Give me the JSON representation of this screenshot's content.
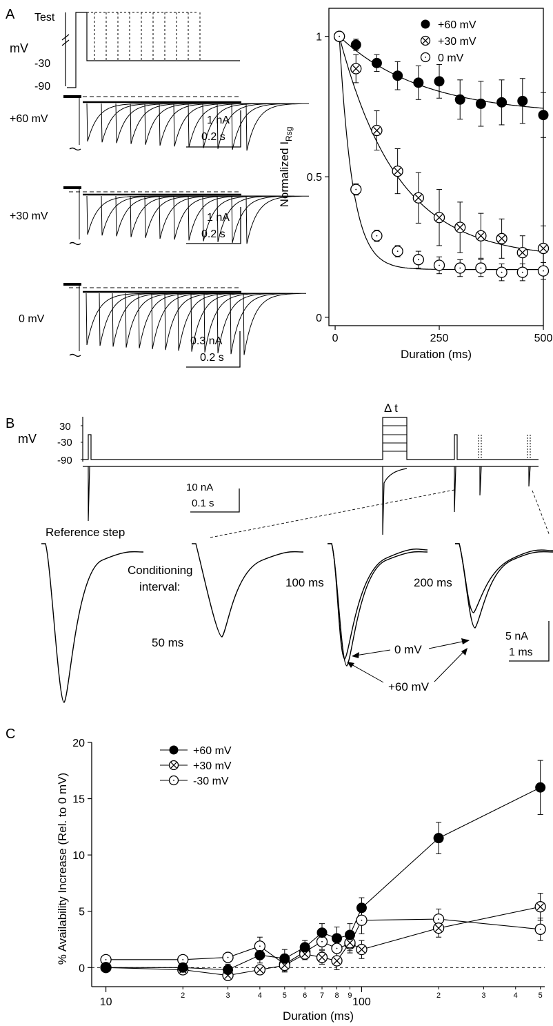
{
  "panels": {
    "A": {
      "label": "A",
      "protocol": {
        "test": "Test",
        "unit": "mV",
        "level_m30": "-30",
        "level_m90": "-90"
      },
      "traces": [
        {
          "name": "+60 mV",
          "scale_current": "1 nA",
          "scale_time": "0.2 s"
        },
        {
          "name": "+30 mV",
          "scale_current": "1 nA",
          "scale_time": "0.2 s"
        },
        {
          "name": "0 mV",
          "scale_current": "0.3 nA",
          "scale_time": "0.2 s"
        }
      ]
    },
    "B": {
      "label": "B",
      "protocol": {
        "unit": "mV",
        "level_30": "30",
        "level_m30": "-30",
        "level_m90": "-90",
        "delta_t": "Δ t"
      },
      "scale_top": {
        "current": "10 nA",
        "time": "0.1 s"
      },
      "scale_bottom": {
        "current": "5 nA",
        "time": "1 ms"
      },
      "labels": {
        "reference": "Reference step",
        "conditioning_1": "Conditioning",
        "conditioning_2": "interval:",
        "t50": "50 ms",
        "t100": "100 ms",
        "t200": "200 ms",
        "arrow_0mv": "0 mV",
        "arrow_60mv": "+60 mV"
      }
    },
    "C": {
      "label": "C"
    }
  },
  "chart_data": [
    {
      "type": "scatter",
      "panel": "A",
      "xlabel": "Duration (ms)",
      "ylabel_main": "Normalized I",
      "ylabel_sub": "Rsg",
      "xlim": [
        -15,
        500
      ],
      "ylim": [
        -0.03,
        1.1
      ],
      "x_ticks": [
        0,
        250,
        500
      ],
      "y_ticks": [
        0,
        0.5,
        1
      ],
      "y_tick_labels": [
        "0",
        "0.5",
        "1"
      ],
      "legend": "top-right",
      "fit_curves": true,
      "series": [
        {
          "name": "+60 mV",
          "marker": "filled",
          "x": [
            10,
            50,
            100,
            150,
            200,
            250,
            300,
            350,
            400,
            450,
            500
          ],
          "y": [
            1.0,
            0.97,
            0.905,
            0.86,
            0.835,
            0.84,
            0.775,
            0.76,
            0.765,
            0.77,
            0.72
          ],
          "err": [
            0,
            0.02,
            0.03,
            0.05,
            0.06,
            0.06,
            0.07,
            0.08,
            0.08,
            0.08,
            0.08
          ],
          "fit": {
            "a": 0.28,
            "tau": 200,
            "c": 0.72
          }
        },
        {
          "name": "+30 mV",
          "marker": "crossed",
          "x": [
            10,
            50,
            100,
            150,
            200,
            250,
            300,
            350,
            400,
            450,
            500
          ],
          "y": [
            1.0,
            0.885,
            0.665,
            0.52,
            0.425,
            0.355,
            0.32,
            0.29,
            0.28,
            0.23,
            0.245
          ],
          "err": [
            0,
            0.05,
            0.07,
            0.08,
            0.09,
            0.1,
            0.09,
            0.08,
            0.07,
            0.06,
            0.08
          ],
          "fit": {
            "a": 0.79,
            "tau": 140,
            "c": 0.21
          }
        },
        {
          "name": "0 mV",
          "marker": "open",
          "x": [
            10,
            50,
            100,
            150,
            200,
            250,
            300,
            350,
            400,
            450,
            500
          ],
          "y": [
            1.0,
            0.455,
            0.29,
            0.235,
            0.205,
            0.185,
            0.175,
            0.175,
            0.16,
            0.16,
            0.165
          ],
          "err": [
            0,
            0.02,
            0.02,
            0.02,
            0.03,
            0.03,
            0.03,
            0.03,
            0.03,
            0.03,
            0.03
          ],
          "fit": {
            "a": 0.83,
            "tau": 32,
            "c": 0.17
          }
        }
      ]
    },
    {
      "type": "line",
      "panel": "C",
      "xlabel": "Duration (ms)",
      "ylabel": "% Availability Increase (Rel. to 0 mV)",
      "xscale": "log",
      "xlim": [
        8.8,
        520
      ],
      "ylim": [
        -1.7,
        20
      ],
      "y_ticks": [
        0,
        5,
        10,
        15,
        20
      ],
      "x_major_ticks": [
        10,
        100
      ],
      "x_major_labels": [
        "10",
        "100"
      ],
      "x_minor_ticks": [
        20,
        30,
        40,
        50,
        60,
        70,
        80,
        90,
        200,
        300,
        400,
        500
      ],
      "x_minor_labels": [
        "2",
        "3",
        "4",
        "5",
        "6",
        "7",
        "8",
        "9",
        "2",
        "3",
        "4",
        "5"
      ],
      "zero_line": "dashed",
      "legend": "top-left",
      "series": [
        {
          "name": "+60 mV",
          "marker": "filled",
          "x": [
            10,
            20,
            30,
            40,
            50,
            60,
            70,
            80,
            90,
            100,
            200,
            500
          ],
          "y": [
            0,
            0,
            -0.2,
            1.1,
            0.8,
            1.8,
            3.1,
            2.6,
            2.9,
            5.3,
            11.5,
            16.0
          ],
          "err": [
            0.2,
            0.3,
            0.5,
            0.7,
            0.8,
            0.6,
            0.8,
            1.0,
            1.0,
            0.9,
            1.4,
            2.4
          ]
        },
        {
          "name": "+30 mV",
          "marker": "crossed",
          "x": [
            10,
            20,
            30,
            40,
            50,
            60,
            70,
            80,
            90,
            100,
            200,
            500
          ],
          "y": [
            0,
            -0.2,
            -0.7,
            -0.2,
            0.2,
            1.2,
            0.9,
            0.6,
            2.2,
            1.6,
            3.5,
            5.4
          ],
          "err": [
            0.2,
            0.3,
            0.4,
            0.4,
            0.6,
            0.5,
            0.6,
            0.8,
            0.7,
            0.8,
            0.8,
            1.2
          ]
        },
        {
          "name": "-30 mV",
          "marker": "open",
          "x": [
            10,
            20,
            30,
            40,
            50,
            60,
            70,
            80,
            90,
            100,
            200,
            500
          ],
          "y": [
            0.7,
            0.7,
            0.9,
            1.9,
            0.3,
            1.4,
            2.3,
            1.7,
            2.1,
            4.2,
            4.3,
            3.4
          ],
          "err": [
            0.3,
            0.3,
            0.4,
            0.8,
            0.6,
            0.6,
            0.7,
            0.9,
            0.8,
            1.2,
            0.9,
            1.0
          ]
        }
      ]
    }
  ]
}
